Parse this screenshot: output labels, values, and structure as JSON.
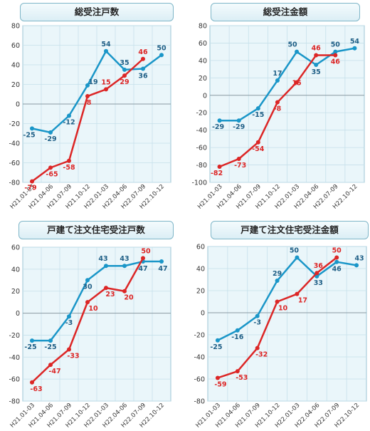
{
  "colors": {
    "blue": "#1a96c8",
    "red": "#dc2626",
    "plot_bg": "#eaf6fa",
    "grid": "#c6e0ea"
  },
  "chart_data": [
    {
      "type": "line",
      "title": "総受注戸数",
      "categories": [
        "H21.01-03",
        "H21.04-06",
        "H21.07-09",
        "H21.10-12",
        "H22.01-03",
        "H22.04-06",
        "H22.07-09",
        "H22.10-12"
      ],
      "ylim": [
        -80,
        80
      ],
      "yticks": [
        80,
        60,
        40,
        20,
        0,
        -20,
        -40,
        -60,
        -80
      ],
      "grid": true,
      "series": [
        {
          "color": "blue",
          "values": [
            -25,
            -29,
            -12,
            19,
            54,
            35,
            36,
            50
          ]
        },
        {
          "color": "red",
          "values": [
            -79,
            -65,
            -58,
            8,
            15,
            29,
            46,
            null
          ]
        }
      ]
    },
    {
      "type": "line",
      "title": "総受注金額",
      "categories": [
        "H21.01-03",
        "H21.04-06",
        "H21.07-09",
        "H21.10-12",
        "H22.01-03",
        "H22.04-06",
        "H22.07-09",
        "H22.10-12"
      ],
      "ylim": [
        -100,
        80
      ],
      "yticks": [
        80,
        60,
        40,
        20,
        0,
        -20,
        -40,
        -60,
        -80,
        -100
      ],
      "grid": true,
      "series": [
        {
          "color": "blue",
          "values": [
            -29,
            -29,
            -15,
            17,
            50,
            35,
            50,
            54
          ]
        },
        {
          "color": "red",
          "values": [
            -82,
            -73,
            -54,
            -8,
            15,
            46,
            46,
            null
          ]
        }
      ]
    },
    {
      "type": "line",
      "title": "戸建て注文住宅受注戸数",
      "categories": [
        "H21.01-03",
        "H21.04-06",
        "H21.07-09",
        "H21.10-12",
        "H22.01-03",
        "H22.04-06",
        "H22.07-09",
        "H22.10-12"
      ],
      "ylim": [
        -80,
        60
      ],
      "yticks": [
        60,
        40,
        20,
        0,
        -20,
        -40,
        -60,
        -80
      ],
      "grid": true,
      "series": [
        {
          "color": "blue",
          "values": [
            -25,
            -25,
            -3,
            30,
            43,
            43,
            47,
            47
          ]
        },
        {
          "color": "red",
          "values": [
            -63,
            -47,
            -33,
            10,
            23,
            20,
            50,
            null
          ]
        }
      ]
    },
    {
      "type": "line",
      "title": "戸建て注文住宅受注金額",
      "categories": [
        "H21.01-03",
        "H21.04-06",
        "H21.07-09",
        "H21.10-12",
        "H22.01-03",
        "H22.04-06",
        "H22.07-09",
        "H22.10-12"
      ],
      "ylim": [
        -80,
        60
      ],
      "yticks": [
        60,
        40,
        20,
        0,
        -20,
        -40,
        -60,
        -80
      ],
      "grid": true,
      "series": [
        {
          "color": "blue",
          "values": [
            -25,
            -16,
            -3,
            29,
            50,
            33,
            46,
            43
          ]
        },
        {
          "color": "red",
          "values": [
            -59,
            -53,
            -32,
            10,
            17,
            36,
            50,
            null
          ]
        }
      ]
    }
  ]
}
